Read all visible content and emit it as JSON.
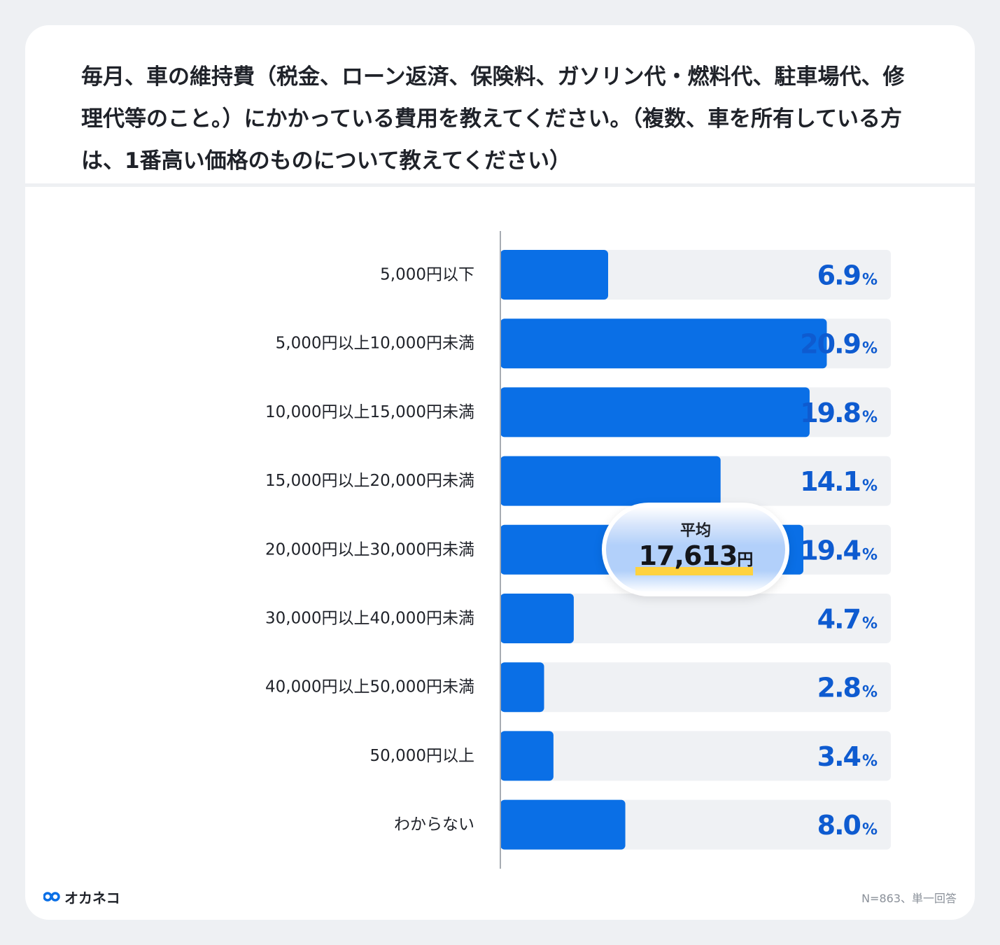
{
  "title": "毎月、車の維持費（税金、ローン返済、保険料、ガソリン代・燃料代、駐車場代、修理代等のこと。）にかかっている費用を教えてください。（複数、車を所有している方は、1番高い価格のものについて教えてください）",
  "average": {
    "label": "平均",
    "value": "17,613",
    "unit": "円"
  },
  "footer": {
    "logo_text": "オカネコ",
    "note": "N=863、単一回答"
  },
  "colors": {
    "bar": "#0a6fe6",
    "track": "#eff1f4",
    "value_text": "#0e5bd0",
    "highlight": "#ffd23f"
  },
  "chart_data": {
    "type": "bar",
    "orientation": "horizontal",
    "categories": [
      "5,000円以下",
      "5,000円以上10,000円未満",
      "10,000円以上15,000円未満",
      "15,000円以上20,000円未満",
      "20,000円以上30,000円未満",
      "30,000円以上40,000円未満",
      "40,000円以上50,000円未満",
      "50,000円以上",
      "わからない"
    ],
    "values": [
      6.9,
      20.9,
      19.8,
      14.1,
      19.4,
      4.7,
      2.8,
      3.4,
      8.0
    ],
    "value_labels": [
      "6.9",
      "20.9",
      "19.8",
      "14.1",
      "19.4",
      "4.7",
      "2.8",
      "3.4",
      "8.0"
    ],
    "unit": "%",
    "xlim": [
      0,
      25
    ]
  }
}
